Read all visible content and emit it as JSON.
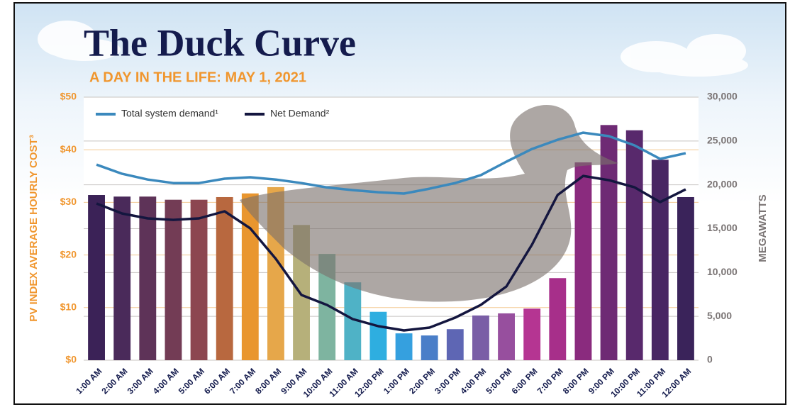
{
  "chart_data": {
    "type": "bar",
    "title": "The Duck Curve",
    "subtitle": "A DAY IN THE LIFE: MAY 1, 2021",
    "ylabel": "PV INDEX AVERAGE HOURLY COST³",
    "y2label": "MEGAWATTS",
    "categories": [
      "1:00 AM",
      "2:00 AM",
      "3:00 AM",
      "4:00 AM",
      "5:00 AM",
      "6:00 AM",
      "7:00 AM",
      "8:00 AM",
      "9:00 AM",
      "10:00 AM",
      "11:00 AM",
      "12:00 PM",
      "1:00 PM",
      "2:00 PM",
      "3:00 PM",
      "4:00 PM",
      "5:00 PM",
      "6:00 PM",
      "7:00 PM",
      "8:00 PM",
      "9:00 PM",
      "10:00 PM",
      "11:00 PM",
      "12:00 AM"
    ],
    "values": [
      31.4,
      31.1,
      31.1,
      30.5,
      30.5,
      31.0,
      31.7,
      32.9,
      25.7,
      20.2,
      14.8,
      9.2,
      5.1,
      4.7,
      5.9,
      8.5,
      8.9,
      9.8,
      15.6,
      37.6,
      44.7,
      43.7,
      38.1,
      31.0
    ],
    "colors": [
      "#3b2257",
      "#4a2a5a",
      "#5e3358",
      "#733c55",
      "#8c4650",
      "#b8683f",
      "#e9962f",
      "#e6a74a",
      "#b6b07a",
      "#7eb4a0",
      "#4fb2c6",
      "#2eaee0",
      "#35a0df",
      "#4a7ec8",
      "#5e66b4",
      "#7a5ea6",
      "#974f9e",
      "#b53592",
      "#a72f8a",
      "#8a2b7e",
      "#6e2a74",
      "#58296c",
      "#482663",
      "#3a235a"
    ],
    "series": [
      {
        "name": "Total system demand¹",
        "color": "#3b89bd",
        "axis": "y2",
        "values": [
          22300,
          21260,
          20600,
          20200,
          20200,
          20700,
          20860,
          20600,
          20200,
          19700,
          19400,
          19160,
          19000,
          19560,
          20200,
          21100,
          22640,
          24090,
          25140,
          25950,
          25550,
          24500,
          22960,
          23600
        ]
      },
      {
        "name": "Net Demand²",
        "color": "#14163f",
        "axis": "y2",
        "values": [
          17870,
          16730,
          16170,
          16000,
          16170,
          16980,
          15040,
          11560,
          7440,
          6300,
          4690,
          3880,
          3400,
          3720,
          4850,
          6300,
          8410,
          13180,
          18840,
          21020,
          20530,
          19720,
          18030,
          19480
        ]
      }
    ],
    "ylim": [
      0,
      50
    ],
    "yticks": [
      {
        "value": 0,
        "label": "$0"
      },
      {
        "value": 10,
        "label": "$10"
      },
      {
        "value": 20,
        "label": "$20"
      },
      {
        "value": 30,
        "label": "$30"
      },
      {
        "value": 40,
        "label": "$40"
      },
      {
        "value": 50,
        "label": "$50"
      }
    ],
    "y2lim": [
      0,
      30000
    ],
    "y2ticks": [
      0,
      {
        "value": 5000,
        "label": "5,000"
      },
      {
        "value": 10000,
        "label": "10,000"
      },
      {
        "value": 15000,
        "label": "15,000"
      },
      {
        "value": 20000,
        "label": "20,000"
      },
      {
        "value": 25000,
        "label": "25,000"
      },
      {
        "value": 30000,
        "label": "30,000"
      }
    ],
    "grid": true
  }
}
